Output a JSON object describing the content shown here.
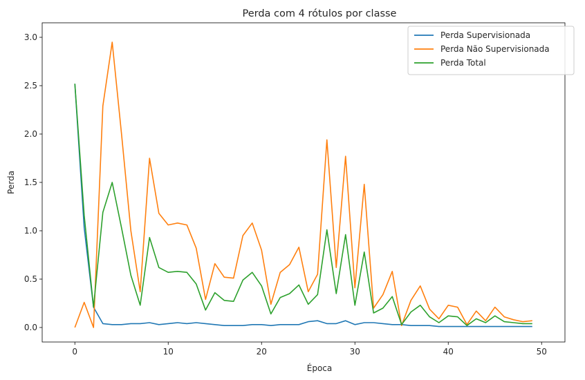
{
  "chart_data": {
    "type": "line",
    "title": "Perda com 4 rótulos por classe",
    "xlabel": "Época",
    "ylabel": "Perda",
    "xlim": [
      -3.5,
      52.5
    ],
    "ylim": [
      -0.15,
      3.15
    ],
    "xticks": [
      0,
      10,
      20,
      30,
      40,
      50
    ],
    "yticks": [
      0.0,
      0.5,
      1.0,
      1.5,
      2.0,
      2.5,
      3.0
    ],
    "xtick_labels": [
      "0",
      "10",
      "20",
      "30",
      "40",
      "50"
    ],
    "ytick_labels": [
      "0.0",
      "0.5",
      "1.0",
      "1.5",
      "2.0",
      "2.5",
      "3.0"
    ],
    "grid": false,
    "legend_position": "top-right",
    "x": [
      0,
      1,
      2,
      3,
      4,
      5,
      6,
      7,
      8,
      9,
      10,
      11,
      12,
      13,
      14,
      15,
      16,
      17,
      18,
      19,
      20,
      21,
      22,
      23,
      24,
      25,
      26,
      27,
      28,
      29,
      30,
      31,
      32,
      33,
      34,
      35,
      36,
      37,
      38,
      39,
      40,
      41,
      42,
      43,
      44,
      45,
      46,
      47,
      48,
      49
    ],
    "series": [
      {
        "name": "Perda Supervisionada",
        "color": "#1f77b4",
        "values": [
          2.52,
          1.03,
          0.21,
          0.04,
          0.03,
          0.03,
          0.04,
          0.04,
          0.05,
          0.03,
          0.04,
          0.05,
          0.04,
          0.05,
          0.04,
          0.03,
          0.02,
          0.02,
          0.02,
          0.03,
          0.03,
          0.02,
          0.03,
          0.03,
          0.03,
          0.06,
          0.07,
          0.04,
          0.04,
          0.07,
          0.03,
          0.05,
          0.05,
          0.04,
          0.03,
          0.03,
          0.02,
          0.02,
          0.02,
          0.01,
          0.01,
          0.01,
          0.01,
          0.01,
          0.01,
          0.01,
          0.01,
          0.01,
          0.01,
          0.01
        ]
      },
      {
        "name": "Perda Não Supervisionada",
        "color": "#ff7f0e",
        "values": [
          0.0,
          0.26,
          0.0,
          2.29,
          2.95,
          2.0,
          1.0,
          0.37,
          1.75,
          1.18,
          1.06,
          1.08,
          1.06,
          0.82,
          0.29,
          0.66,
          0.52,
          0.51,
          0.95,
          1.08,
          0.8,
          0.24,
          0.57,
          0.65,
          0.83,
          0.37,
          0.55,
          1.94,
          0.62,
          1.77,
          0.41,
          1.48,
          0.2,
          0.34,
          0.58,
          0.02,
          0.28,
          0.43,
          0.19,
          0.09,
          0.23,
          0.21,
          0.03,
          0.17,
          0.07,
          0.21,
          0.11,
          0.08,
          0.06,
          0.07
        ]
      },
      {
        "name": "Perda Total",
        "color": "#2ca02c",
        "values": [
          2.52,
          1.16,
          0.21,
          1.19,
          1.5,
          1.03,
          0.54,
          0.23,
          0.93,
          0.62,
          0.57,
          0.58,
          0.57,
          0.45,
          0.18,
          0.36,
          0.28,
          0.27,
          0.49,
          0.57,
          0.43,
          0.14,
          0.31,
          0.35,
          0.44,
          0.24,
          0.34,
          1.01,
          0.35,
          0.96,
          0.23,
          0.78,
          0.15,
          0.2,
          0.32,
          0.03,
          0.16,
          0.23,
          0.11,
          0.05,
          0.12,
          0.11,
          0.02,
          0.09,
          0.05,
          0.12,
          0.06,
          0.05,
          0.04,
          0.04
        ]
      }
    ]
  }
}
